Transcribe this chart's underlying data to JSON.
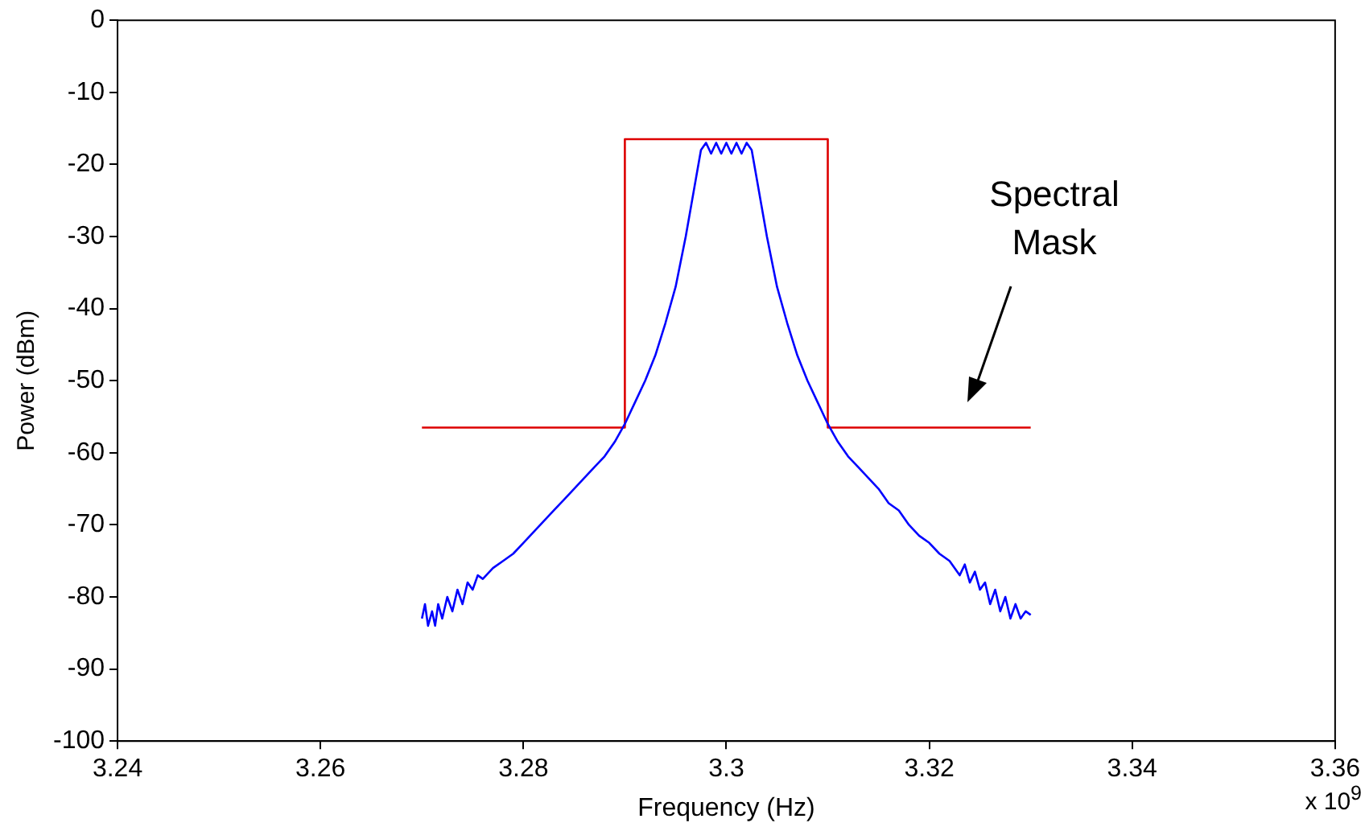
{
  "chart_data": {
    "type": "line",
    "xlabel": "Frequency (Hz)",
    "ylabel": "Power (dBm)",
    "annotations": [
      "Spectral Mask",
      "x 10$^{9}$"
    ],
    "marker": "none",
    "grid": false,
    "legend": false,
    "xlim": [
      3.24,
      3.36
    ],
    "xticks": [
      3.24,
      3.26,
      3.28,
      3.3,
      3.32,
      3.34,
      3.36
    ],
    "ylim": [
      -100,
      0
    ],
    "yticks": [
      -100,
      -90,
      -80,
      -70,
      -60,
      -50,
      -40,
      -30,
      -20,
      -10,
      0
    ],
    "series": [
      {
        "color": "#0000ff",
        "x": [
          3.27,
          3.2703,
          3.2706,
          3.271,
          3.2713,
          3.2716,
          3.272,
          3.2725,
          3.273,
          3.2735,
          3.274,
          3.2745,
          3.275,
          3.2755,
          3.276,
          3.277,
          3.278,
          3.279,
          3.28,
          3.281,
          3.282,
          3.283,
          3.284,
          3.285,
          3.286,
          3.287,
          3.288,
          3.289,
          3.29,
          3.291,
          3.292,
          3.293,
          3.294,
          3.295,
          3.296,
          3.297,
          3.2975,
          3.298,
          3.2985,
          3.299,
          3.2995,
          3.3,
          3.3005,
          3.301,
          3.3015,
          3.302,
          3.3025,
          3.303,
          3.304,
          3.305,
          3.306,
          3.307,
          3.308,
          3.309,
          3.31,
          3.311,
          3.312,
          3.313,
          3.314,
          3.315,
          3.316,
          3.317,
          3.318,
          3.319,
          3.32,
          3.321,
          3.322,
          3.323,
          3.3235,
          3.324,
          3.3245,
          3.325,
          3.3255,
          3.326,
          3.3265,
          3.327,
          3.3275,
          3.328,
          3.3285,
          3.329,
          3.3295,
          3.33
        ],
        "values": [
          -83,
          -81,
          -84,
          -82,
          -84,
          -81,
          -83,
          -80,
          -82,
          -79,
          -81,
          -78,
          -79,
          -77,
          -77.5,
          -76,
          -75,
          -74,
          -72.5,
          -71,
          -69.5,
          -68,
          -66.5,
          -65,
          -63.5,
          -62,
          -60.5,
          -58.5,
          -56,
          -53,
          -50,
          -46.5,
          -42,
          -37,
          -30,
          -22,
          -18,
          -17,
          -18.5,
          -17,
          -18.5,
          -17,
          -18.5,
          -17,
          -18.5,
          -17,
          -18,
          -22,
          -30,
          -37,
          -42,
          -46.5,
          -50,
          -53,
          -56,
          -58.5,
          -60.5,
          -62,
          -63.5,
          -65,
          -67,
          -68,
          -70,
          -71.5,
          -72.5,
          -74,
          -75,
          -77,
          -75.5,
          -78,
          -76.5,
          -79,
          -78,
          -81,
          -79,
          -82,
          -80,
          -83,
          -81,
          -83,
          -82,
          -82.5
        ]
      },
      {
        "color": "#dd0000",
        "x": [
          3.27,
          3.29,
          3.29,
          3.31,
          3.31,
          3.33
        ],
        "values": [
          -56.5,
          -56.5,
          -16.5,
          -16.5,
          -56.5,
          -56.5
        ]
      }
    ]
  }
}
